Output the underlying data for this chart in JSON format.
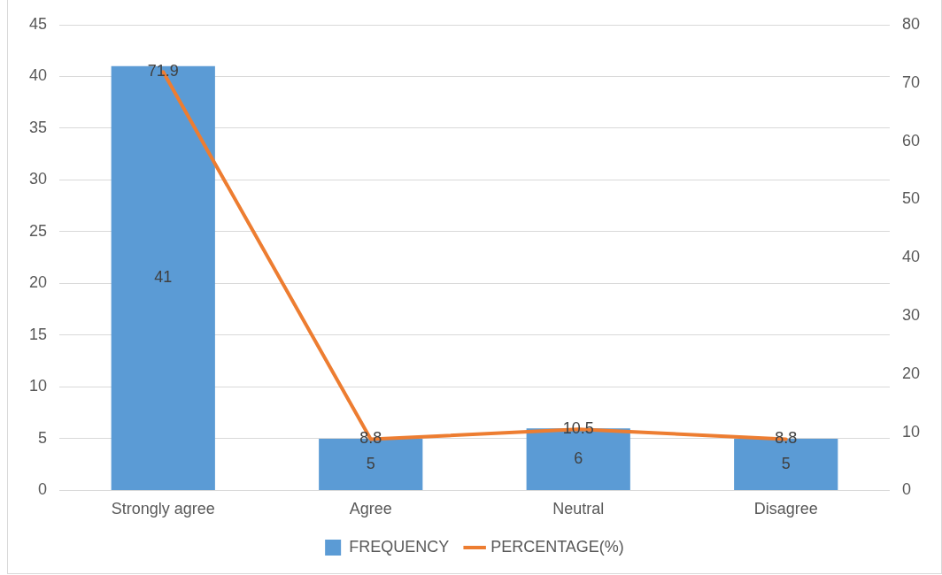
{
  "chart_data": {
    "type": "bar",
    "categories": [
      "Strongly agree",
      "Agree",
      "Neutral",
      "Disagree"
    ],
    "series": [
      {
        "name": "FREQUENCY",
        "color": "#5b9bd5",
        "values": [
          41,
          5,
          6,
          5
        ]
      },
      {
        "name": "PERCENTAGE(%)",
        "type": "line",
        "axis": "y2",
        "color": "#ed7d31",
        "values": [
          71.9,
          8.8,
          10.5,
          8.8
        ]
      }
    ],
    "ylim": [
      0,
      45
    ],
    "yticks": [
      0,
      5,
      10,
      15,
      20,
      25,
      30,
      35,
      40,
      45
    ],
    "y2lim": [
      0,
      80
    ],
    "y2ticks": [
      0,
      10,
      20,
      30,
      40,
      50,
      60,
      70,
      80
    ],
    "grid": "y",
    "legend": "bottom",
    "data_labels": true
  }
}
